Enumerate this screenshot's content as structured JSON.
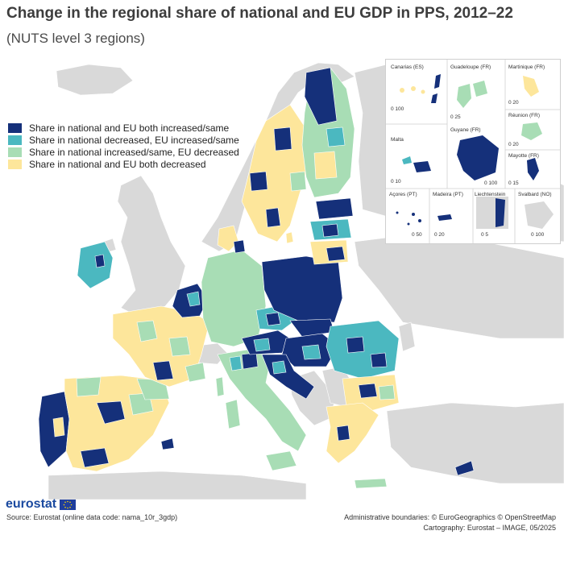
{
  "header": {
    "title": "Change in the regional share of national and EU GDP in PPS, 2012–22",
    "subtitle": "(NUTS level 3 regions)"
  },
  "colors": {
    "both_increased": "#15307a",
    "national_decreased_eu_increased": "#4bb8c0",
    "national_increased_eu_decreased": "#a8ddb5",
    "both_decreased": "#fde69b",
    "non_eu_land": "#d9d9d9",
    "sea": "#ffffff"
  },
  "legend": {
    "items": [
      {
        "label": "Share in national and EU both increased/same",
        "color": "#15307a"
      },
      {
        "label": "Share in national decreased, EU increased/same",
        "color": "#4bb8c0"
      },
      {
        "label": "Share in national increased/same, EU decreased",
        "color": "#a8ddb5"
      },
      {
        "label": "Share in national and EU both decreased",
        "color": "#fde69b"
      }
    ]
  },
  "insets": [
    {
      "name": "Canarias (ES)",
      "scale": "0 100"
    },
    {
      "name": "Guadeloupe (FR)",
      "scale": "0 25"
    },
    {
      "name": "Martinique (FR)",
      "scale": "0 20"
    },
    {
      "name": "Réunion (FR)",
      "scale": "0 20"
    },
    {
      "name": "Malta",
      "scale": "0 10"
    },
    {
      "name": "Guyane (FR)",
      "scale": "0 100"
    },
    {
      "name": "Mayotte (FR)",
      "scale": "0 15"
    },
    {
      "name": "Açores (PT)",
      "scale": "0 50"
    },
    {
      "name": "Madeira (PT)",
      "scale": "0 20"
    },
    {
      "name": "Liechtenstein",
      "scale": "0 5"
    },
    {
      "name": "Svalbard (NO)",
      "scale": "0 100"
    }
  ],
  "footer": {
    "logo": "eurostat",
    "source": "Source: Eurostat (online data code: nama_10r_3gdp)",
    "boundaries": "Administrative boundaries: © EuroGeographics © OpenStreetMap",
    "cartography": "Cartography: Eurostat – IMAGE, 05/2025"
  }
}
